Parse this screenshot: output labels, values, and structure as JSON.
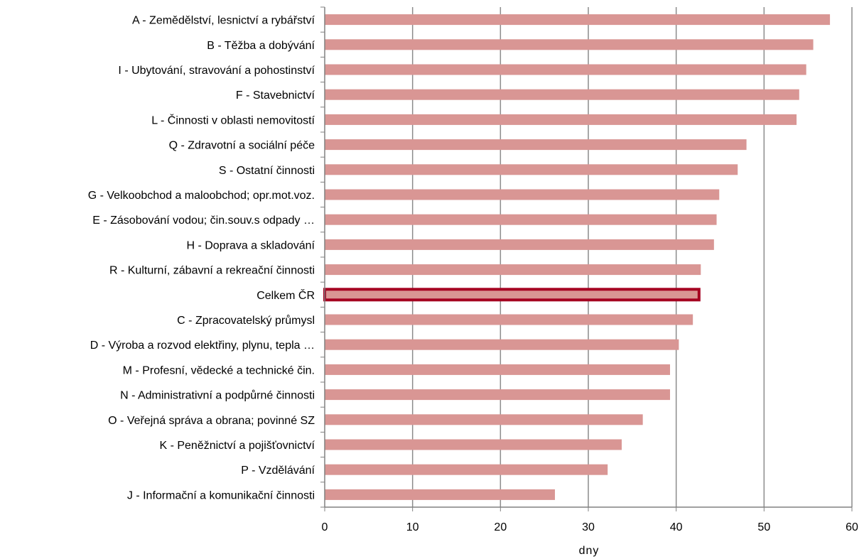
{
  "chart_data": {
    "type": "bar",
    "orientation": "horizontal",
    "xlabel": "dny",
    "xlim": [
      0,
      60
    ],
    "xticks": [
      0,
      10,
      20,
      30,
      40,
      50,
      60
    ],
    "grid": "vertical",
    "bar_color": "#d99694",
    "highlight_color": "#a50021",
    "highlight_category": "Celkem ČR",
    "categories": [
      "A - Zemědělství, lesnictví a rybářství",
      "B - Těžba a dobývání",
      "I - Ubytování, stravování a pohostinství",
      "F - Stavebnictví",
      "L - Činnosti v oblasti nemovitostí",
      "Q - Zdravotní a sociální péče",
      "S - Ostatní činnosti",
      "G - Velkoobchod a maloobchod; opr.mot.voz.",
      "E - Zásobování vodou; čin.souv.s odpady …",
      "H - Doprava a skladování",
      "R - Kulturní, zábavní a rekreační činnosti",
      "Celkem ČR",
      "C - Zpracovatelský průmysl",
      "D - Výroba a rozvod elektřiny, plynu, tepla …",
      "M - Profesní, vědecké a technické čin.",
      "N - Administrativní a podpůrné činnosti",
      "O - Veřejná správa a obrana; povinné SZ",
      "K - Peněžnictví a pojišťovnictví",
      "P - Vzdělávání",
      "J - Informační a komunikační činnosti"
    ],
    "values": [
      57.5,
      55.6,
      54.8,
      54.0,
      53.7,
      48.0,
      47.0,
      44.9,
      44.6,
      44.3,
      42.8,
      42.6,
      41.9,
      40.3,
      39.3,
      39.3,
      36.2,
      33.8,
      32.2,
      26.2
    ]
  }
}
